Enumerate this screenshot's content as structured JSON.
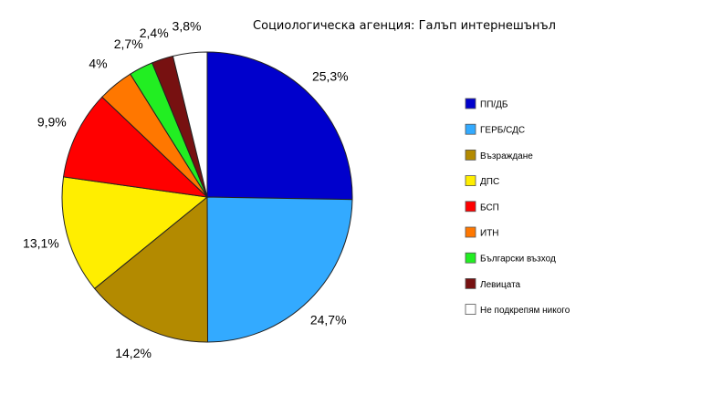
{
  "chart_data": {
    "type": "pie",
    "title": "Социологическа агенция: Галъп интернешънъл",
    "slices": [
      {
        "name": "ПП/ДБ",
        "value": 25.3,
        "label": "25,3%",
        "color": "#0000cc"
      },
      {
        "name": "ГЕРБ/СДС",
        "value": 24.7,
        "label": "24,7%",
        "color": "#33aaff"
      },
      {
        "name": "Възраждане",
        "value": 14.2,
        "label": "14,2%",
        "color": "#b38a00"
      },
      {
        "name": "ДПС",
        "value": 13.1,
        "label": "13,1%",
        "color": "#ffee00"
      },
      {
        "name": "БСП",
        "value": 9.9,
        "label": "9,9%",
        "color": "#ff0000"
      },
      {
        "name": "ИТН",
        "value": 4,
        "label": "4%",
        "color": "#ff7700"
      },
      {
        "name": "Български възход",
        "value": 2.7,
        "label": "2,7%",
        "color": "#22ee22"
      },
      {
        "name": "Левицата",
        "value": 2.4,
        "label": "2,4%",
        "color": "#771111"
      },
      {
        "name": "Не подкрепям никого",
        "value": 3.8,
        "label": "3,8%",
        "color": "#ffffff"
      }
    ],
    "legend_position": "right"
  }
}
